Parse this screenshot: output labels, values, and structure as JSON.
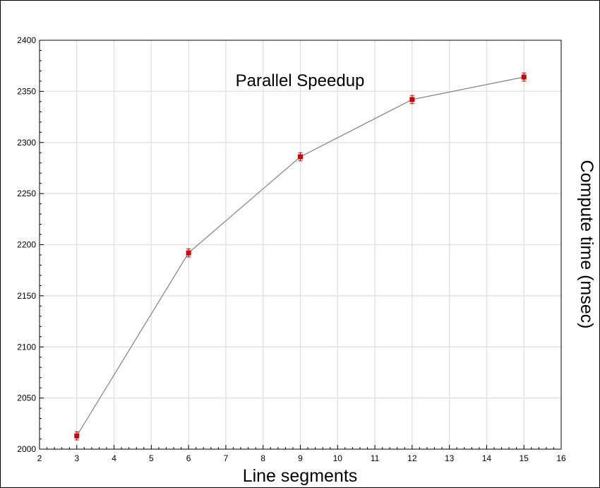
{
  "chart_data": {
    "type": "line",
    "title": "Parallel Speedup",
    "xlabel": "Line segments",
    "ylabel": "Compute time (msec)",
    "xlim": [
      2,
      16
    ],
    "ylim": [
      2000,
      2400
    ],
    "x_ticks": [
      2,
      3,
      4,
      5,
      6,
      7,
      8,
      9,
      10,
      11,
      12,
      13,
      14,
      15,
      16
    ],
    "y_ticks": [
      2000,
      2050,
      2100,
      2150,
      2200,
      2250,
      2300,
      2350,
      2400
    ],
    "grid": true,
    "ylabel_position": "right",
    "series": [
      {
        "x": [
          3,
          6,
          9,
          12,
          15
        ],
        "y": [
          2013,
          2192,
          2286,
          2342,
          2364
        ],
        "error": [
          4,
          4,
          4,
          4,
          4
        ],
        "line_color": "#808080",
        "marker_color": "#cc0000",
        "marker": "square"
      }
    ]
  }
}
